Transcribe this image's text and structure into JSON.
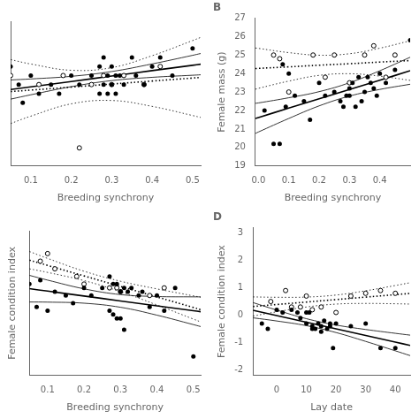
{
  "chart_data": [
    {
      "type": "scatter",
      "xlabel": "Breeding synchrony",
      "xlim": [
        0.05,
        0.52
      ],
      "ylim": [
        3,
        19
      ],
      "xticks": [
        0.1,
        0.2,
        0.3,
        0.4,
        0.5
      ],
      "grid": false,
      "tick_labels": "x",
      "series": [
        {
          "marker": "circle",
          "line_style": "solid",
          "color": "black",
          "x": [
            0.05,
            0.07,
            0.08,
            0.1,
            0.12,
            0.15,
            0.17,
            0.2,
            0.22,
            0.25,
            0.27,
            0.27,
            0.28,
            0.28,
            0.29,
            0.29,
            0.3,
            0.3,
            0.31,
            0.31,
            0.32,
            0.33,
            0.35,
            0.36,
            0.38,
            0.4,
            0.42,
            0.45,
            0.5
          ],
          "values": [
            14,
            12,
            10,
            13,
            11,
            12,
            11,
            13,
            12,
            13,
            14,
            11,
            15,
            12,
            13,
            11,
            14,
            12,
            13,
            11,
            13,
            12,
            15,
            13,
            12,
            14,
            15,
            13,
            16
          ],
          "fit_x": [
            0.05,
            0.1,
            0.2,
            0.3,
            0.4,
            0.5,
            0.52
          ],
          "fit": [
            11.45,
            11.75,
            12.34,
            12.94,
            13.54,
            14.13,
            14.25
          ],
          "ci_upper": [
            12.51,
            12.62,
            12.91,
            13.44,
            14.28,
            15.23,
            15.43
          ],
          "ci_lower": [
            10.39,
            10.87,
            11.77,
            12.44,
            12.8,
            13.03,
            13.08
          ]
        },
        {
          "marker": "open_circle",
          "line_style": "dotted",
          "color": "black",
          "x": [
            0.05,
            0.12,
            0.18,
            0.22,
            0.25,
            0.28,
            0.3,
            0.33,
            0.38,
            0.42
          ],
          "values": [
            13,
            12,
            13,
            5,
            12,
            13,
            12,
            13,
            12,
            14
          ],
          "fit_x": [
            0.05,
            0.1,
            0.2,
            0.3,
            0.4,
            0.5,
            0.52
          ],
          "fit": [
            11.23,
            11.39,
            11.72,
            12.06,
            12.39,
            12.72,
            12.79
          ],
          "ci_upper": [
            14.76,
            14.27,
            13.58,
            13.87,
            15.19,
            16.86,
            17.21
          ],
          "ci_lower": [
            7.69,
            8.51,
            9.87,
            10.24,
            9.59,
            8.58,
            8.37
          ]
        }
      ]
    },
    {
      "type": "scatter",
      "title": "B",
      "xlabel": "Breeding synchrony",
      "ylabel": "Female mass (g)",
      "xlim": [
        -0.01,
        0.5
      ],
      "ylim": [
        19,
        27
      ],
      "xticks": [
        {
          "value": 0,
          "label": "0.0"
        },
        0.1,
        0.2,
        0.3,
        0.4
      ],
      "yticks": [
        19,
        20,
        21,
        22,
        23,
        24,
        25,
        26,
        27
      ],
      "grid": false,
      "series": [
        {
          "marker": "circle",
          "line_style": "solid",
          "color": "black",
          "x": [
            0.02,
            0.05,
            0.07,
            0.08,
            0.09,
            0.1,
            0.12,
            0.15,
            0.17,
            0.2,
            0.22,
            0.25,
            0.27,
            0.28,
            0.29,
            0.3,
            0.3,
            0.31,
            0.32,
            0.33,
            0.34,
            0.35,
            0.36,
            0.37,
            0.38,
            0.39,
            0.4,
            0.42,
            0.45,
            0.5
          ],
          "values": [
            22.0,
            20.2,
            20.2,
            24.5,
            22.2,
            24.0,
            22.8,
            22.5,
            21.5,
            23.5,
            22.8,
            23.0,
            22.5,
            22.2,
            22.8,
            23.2,
            22.8,
            23.5,
            22.2,
            23.8,
            22.5,
            23.0,
            23.8,
            23.5,
            23.2,
            22.8,
            24.0,
            23.5,
            24.2,
            25.8
          ],
          "fit_x": [
            -0.01,
            0,
            0.1,
            0.2,
            0.3,
            0.4,
            0.5
          ],
          "fit": [
            21.57,
            21.62,
            22.13,
            22.63,
            23.14,
            23.64,
            24.15
          ],
          "ci_upper": [
            22.39,
            22.41,
            22.69,
            23.02,
            23.5,
            24.15,
            24.88
          ],
          "ci_lower": [
            20.76,
            20.84,
            21.57,
            22.25,
            22.78,
            23.14,
            23.42
          ]
        },
        {
          "marker": "open_circle",
          "line_style": "dotted",
          "color": "black",
          "x": [
            0.05,
            0.07,
            0.1,
            0.18,
            0.22,
            0.25,
            0.3,
            0.35,
            0.38,
            0.42,
            0.45
          ],
          "values": [
            25.0,
            24.8,
            23.0,
            25.0,
            23.8,
            25.0,
            23.5,
            25.0,
            25.5,
            23.8,
            25.0
          ],
          "fit_x": [
            -0.01,
            0,
            0.1,
            0.2,
            0.3,
            0.4,
            0.5
          ],
          "fit": [
            24.27,
            24.28,
            24.36,
            24.45,
            24.53,
            24.62,
            24.7
          ],
          "ci_upper": [
            25.38,
            25.36,
            25.13,
            24.99,
            25.07,
            25.37,
            25.77
          ],
          "ci_lower": [
            23.15,
            23.2,
            23.59,
            23.9,
            23.99,
            23.86,
            23.63
          ]
        }
      ]
    },
    {
      "type": "scatter",
      "xlabel": "Breeding synchrony",
      "ylabel": "Female condition index",
      "xlim": [
        0.05,
        0.52
      ],
      "ylim": [
        -2.0,
        1.8
      ],
      "xticks": [
        0.1,
        0.2,
        0.3,
        0.4,
        0.5
      ],
      "grid": false,
      "tick_labels": "x",
      "series": [
        {
          "marker": "circle",
          "line_style": "solid",
          "color": "black",
          "x": [
            0.05,
            0.07,
            0.08,
            0.1,
            0.12,
            0.15,
            0.17,
            0.2,
            0.22,
            0.25,
            0.27,
            0.27,
            0.28,
            0.28,
            0.29,
            0.29,
            0.3,
            0.3,
            0.31,
            0.31,
            0.32,
            0.33,
            0.35,
            0.36,
            0.38,
            0.4,
            0.42,
            0.45,
            0.5
          ],
          "values": [
            0.4,
            -0.2,
            0.5,
            -0.3,
            0.2,
            0.1,
            -0.1,
            0.3,
            0.1,
            0.3,
            -0.3,
            0.6,
            -0.4,
            0.4,
            -0.5,
            0.4,
            -0.5,
            0.2,
            -0.8,
            0.3,
            0.2,
            0.3,
            0.1,
            0.2,
            -0.2,
            0.1,
            -0.3,
            0.3,
            -1.5
          ],
          "fit_x": [
            0.05,
            0.1,
            0.2,
            0.3,
            0.4,
            0.5,
            0.52
          ],
          "fit": [
            0.279,
            0.215,
            0.086,
            -0.043,
            -0.171,
            -0.3,
            -0.326
          ],
          "ci_upper": [
            0.629,
            0.504,
            0.275,
            0.124,
            0.073,
            0.064,
            0.064
          ],
          "ci_lower": [
            -0.071,
            -0.074,
            -0.102,
            -0.209,
            -0.416,
            -0.664,
            -0.715
          ]
        },
        {
          "marker": "open_circle",
          "line_style": "dotted",
          "color": "black",
          "x": [
            0.08,
            0.1,
            0.12,
            0.18,
            0.2,
            0.27,
            0.29,
            0.3,
            0.38,
            0.42
          ],
          "values": [
            1.0,
            1.2,
            0.8,
            0.6,
            0.4,
            0.3,
            0.3,
            0.2,
            0.1,
            0.3
          ],
          "fit_x": [
            0.05,
            0.1,
            0.2,
            0.3,
            0.4,
            0.5,
            0.52
          ],
          "fit": [
            1.028,
            0.89,
            0.614,
            0.338,
            0.062,
            -0.214,
            -0.27
          ],
          "ci_upper": [
            1.255,
            1.074,
            0.737,
            0.474,
            0.273,
            0.09,
            0.054
          ],
          "ci_lower": [
            0.801,
            0.706,
            0.491,
            0.201,
            -0.149,
            -0.519,
            -0.594
          ]
        }
      ]
    },
    {
      "type": "scatter",
      "title": "D",
      "xlabel": "Lay date",
      "ylabel": "Female condition index",
      "xlim": [
        -8,
        45
      ],
      "ylim": [
        -2.2,
        3.2
      ],
      "xticks": [
        0,
        10,
        20,
        30,
        40
      ],
      "yticks": [
        -2,
        -1,
        0,
        1,
        2,
        3
      ],
      "grid": false,
      "series": [
        {
          "marker": "circle",
          "line_style": "solid",
          "color": "black",
          "x": [
            -5,
            -3,
            0,
            2,
            5,
            7,
            8,
            10,
            10,
            11,
            12,
            12,
            13,
            14,
            15,
            15,
            16,
            17,
            18,
            18,
            19,
            20,
            25,
            30,
            35,
            40
          ],
          "values": [
            -0.3,
            -0.5,
            0.2,
            0.1,
            0.2,
            0.1,
            -0.1,
            0.1,
            -0.3,
            0.1,
            -0.5,
            -0.4,
            -0.5,
            -0.3,
            -0.4,
            -0.6,
            -0.2,
            -0.5,
            -0.4,
            -0.3,
            -1.2,
            -0.3,
            -0.4,
            -0.3,
            -1.2,
            -1.2
          ],
          "fit_x": [
            -8,
            0,
            10,
            20,
            30,
            40,
            45
          ],
          "fit": [
            0.183,
            -0.011,
            -0.253,
            -0.495,
            -0.737,
            -0.98,
            -1.101
          ],
          "ci_upper": [
            0.461,
            0.188,
            -0.126,
            -0.358,
            -0.52,
            -0.66,
            -0.727
          ],
          "ci_lower": [
            -0.095,
            -0.21,
            -0.38,
            -0.632,
            -0.955,
            -1.299,
            -1.474
          ]
        },
        {
          "marker": "open_circle",
          "line_style": "dotted",
          "color": "black",
          "x": [
            -2,
            3,
            5,
            8,
            10,
            12,
            15,
            20,
            25,
            30,
            35,
            40
          ],
          "values": [
            0.5,
            0.9,
            0.3,
            0.3,
            0.7,
            0.2,
            0.3,
            0.1,
            0.7,
            0.8,
            0.9,
            0.8
          ],
          "fit_x": [
            -8,
            0,
            10,
            20,
            30,
            40,
            45
          ],
          "fit": [
            0.318,
            0.391,
            0.481,
            0.571,
            0.661,
            0.751,
            0.796
          ],
          "ci_upper": [
            0.668,
            0.655,
            0.662,
            0.736,
            0.892,
            1.084,
            1.186
          ],
          "ci_lower": [
            -0.031,
            0.126,
            0.3,
            0.406,
            0.43,
            0.418,
            0.407
          ]
        }
      ]
    }
  ]
}
